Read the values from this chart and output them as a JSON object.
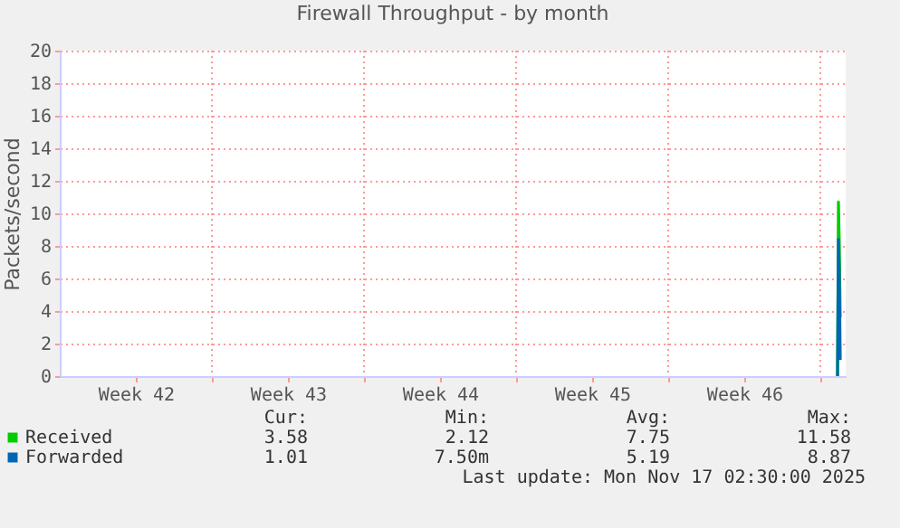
{
  "chart_data": {
    "type": "line",
    "title": "Firewall Throughput - by month",
    "ylabel": "Packets/second",
    "xlim": [
      "2025-10-13T00:00",
      "2025-11-18T04:00"
    ],
    "xticks": [
      {
        "value": "2025-10-16T12:00",
        "label": "Week 42"
      },
      {
        "value": "2025-10-20T00:00",
        "label": null
      },
      {
        "value": "2025-10-23T12:00",
        "label": "Week 43"
      },
      {
        "value": "2025-10-27T00:00",
        "label": null
      },
      {
        "value": "2025-10-30T12:00",
        "label": "Week 44"
      },
      {
        "value": "2025-11-03T00:00",
        "label": null
      },
      {
        "value": "2025-11-06T12:00",
        "label": "Week 45"
      },
      {
        "value": "2025-11-10T00:00",
        "label": null
      },
      {
        "value": "2025-11-13T12:00",
        "label": "Week 46"
      },
      {
        "value": "2025-11-17T00:00",
        "label": null
      }
    ],
    "ylim": [
      0,
      20
    ],
    "yticks": [
      0,
      2,
      4,
      6,
      8,
      10,
      12,
      14,
      16,
      18,
      20
    ],
    "grid": true,
    "legend": "bottom",
    "series": [
      {
        "name": "Received",
        "color": "#00cc00",
        "x": [
          "2025-11-17T19:00",
          "2025-11-17T20:00",
          "2025-11-17T21:00",
          "2025-11-17T22:00"
        ],
        "values": [
          0,
          10.7,
          8.0,
          3.6
        ]
      },
      {
        "name": "Forwarded",
        "color": "#0066b3",
        "x": [
          "2025-11-17T19:00",
          "2025-11-17T20:00",
          "2025-11-17T21:00",
          "2025-11-17T22:00"
        ],
        "values": [
          0,
          8.4,
          6.1,
          1.0
        ]
      }
    ],
    "annotations": [
      "Cur:",
      "Min:",
      "Avg:",
      "Max:",
      "3.58",
      "2.12",
      "7.75",
      "11.58",
      "1.01",
      "7.50m",
      "5.19",
      "8.87",
      "Last update: Mon Nov 17 02:30:00 2025"
    ]
  }
}
